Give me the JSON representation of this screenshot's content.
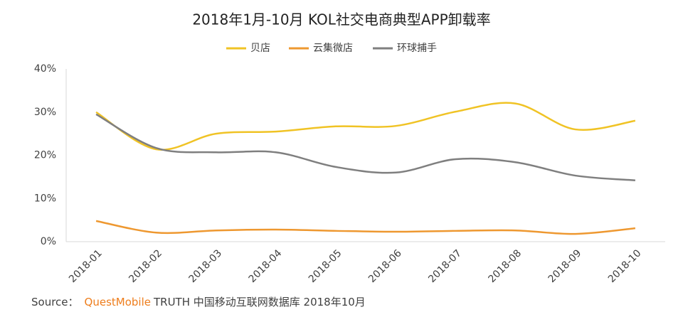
{
  "chart_data": {
    "type": "line",
    "title": "2018年1月-10月 KOL社交电商典型APP卸载率",
    "categories": [
      "2018-01",
      "2018-02",
      "2018-03",
      "2018-04",
      "2018-05",
      "2018-06",
      "2018-07",
      "2018-08",
      "2018-09",
      "2018-10"
    ],
    "series": [
      {
        "name": "贝店",
        "color": "#f0c325",
        "values": [
          30,
          21.4,
          25,
          25.5,
          26.7,
          26.8,
          30.1,
          32,
          26,
          28
        ]
      },
      {
        "name": "云集微店",
        "color": "#ee9830",
        "values": [
          4.8,
          2.1,
          2.6,
          2.8,
          2.5,
          2.3,
          2.5,
          2.6,
          1.8,
          3.1
        ]
      },
      {
        "name": "环球捕手",
        "color": "#7f7f7f",
        "values": [
          29.5,
          21.7,
          20.7,
          20.7,
          17.3,
          16,
          19.1,
          18.4,
          15.3,
          14.2
        ]
      }
    ],
    "ylim": [
      0,
      40
    ],
    "yticks": [
      {
        "value": 0,
        "label": "0%"
      },
      {
        "value": 10,
        "label": "10%"
      },
      {
        "value": 20,
        "label": "20%"
      },
      {
        "value": 30,
        "label": "30%"
      },
      {
        "value": 40,
        "label": "40%"
      }
    ],
    "grid": false,
    "smooth": true,
    "legend": "top"
  },
  "source": {
    "prefix": "Source：",
    "brand": "QuestMobile",
    "text": "TRUTH 中国移动互联网数据库 2018年10月"
  }
}
